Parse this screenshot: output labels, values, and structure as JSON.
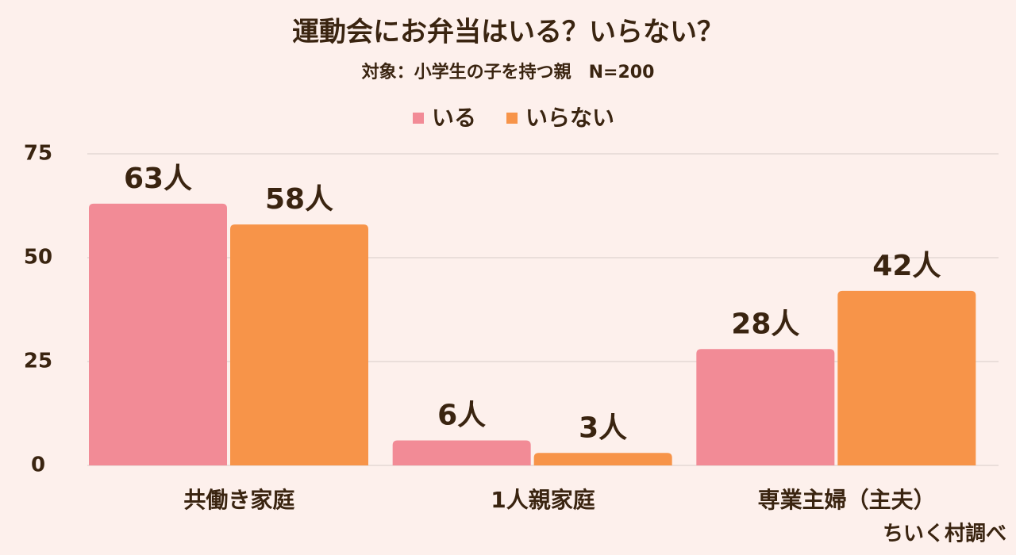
{
  "chart_data": {
    "type": "bar",
    "title": "運動会にお弁当はいる？いらない？",
    "subtitle": "対象：小学生の子を持つ親　N=200",
    "source": "ちいく村調べ",
    "categories": [
      "共働き家庭",
      "1人親家庭",
      "専業主婦（主夫）"
    ],
    "series": [
      {
        "name": "いる",
        "color": "#f28b96",
        "values": [
          63,
          6,
          28
        ],
        "value_labels": [
          "63人",
          "6人",
          "28人"
        ]
      },
      {
        "name": "いらない",
        "color": "#f79449",
        "values": [
          58,
          3,
          42
        ],
        "value_labels": [
          "58人",
          "3人",
          "42人"
        ]
      }
    ],
    "ylim": [
      0,
      75
    ],
    "yticks": [
      0,
      25,
      50,
      75
    ],
    "grid": true
  }
}
